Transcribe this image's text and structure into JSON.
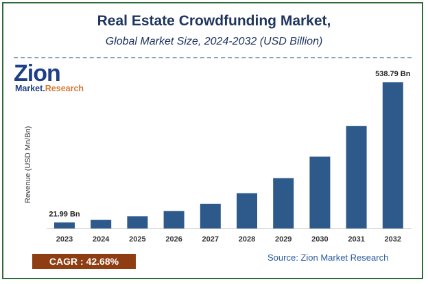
{
  "title": "Real Estate Crowdfunding Market,",
  "subtitle": "Global Market Size, 2024-2032 (USD Billion)",
  "logo": {
    "main": "Zion",
    "sub_a": "Market.",
    "sub_b": "Research"
  },
  "cagr_label": "CAGR : 42.68%",
  "source": "Source: Zion Market Research",
  "colors": {
    "bar": "#2d5a8a",
    "title": "#1f3560",
    "border": "#2e6b36",
    "cagr_bg": "#8e3e12"
  },
  "chart_data": {
    "type": "bar",
    "categories": [
      "2023",
      "2024",
      "2025",
      "2026",
      "2027",
      "2028",
      "2029",
      "2030",
      "2031",
      "2032"
    ],
    "values": [
      21.99,
      31.4,
      44.8,
      63.9,
      91.1,
      130.0,
      185.4,
      264.5,
      377.4,
      538.79
    ],
    "data_labels": [
      {
        "index": 0,
        "text": "21.99 Bn"
      },
      {
        "index": 9,
        "text": "538.79 Bn"
      }
    ],
    "ylabel": "Revenue (USD Mn/Bn)",
    "xlabel": "",
    "ylim": [
      0,
      538.79
    ],
    "grid": false,
    "legend": "none"
  }
}
